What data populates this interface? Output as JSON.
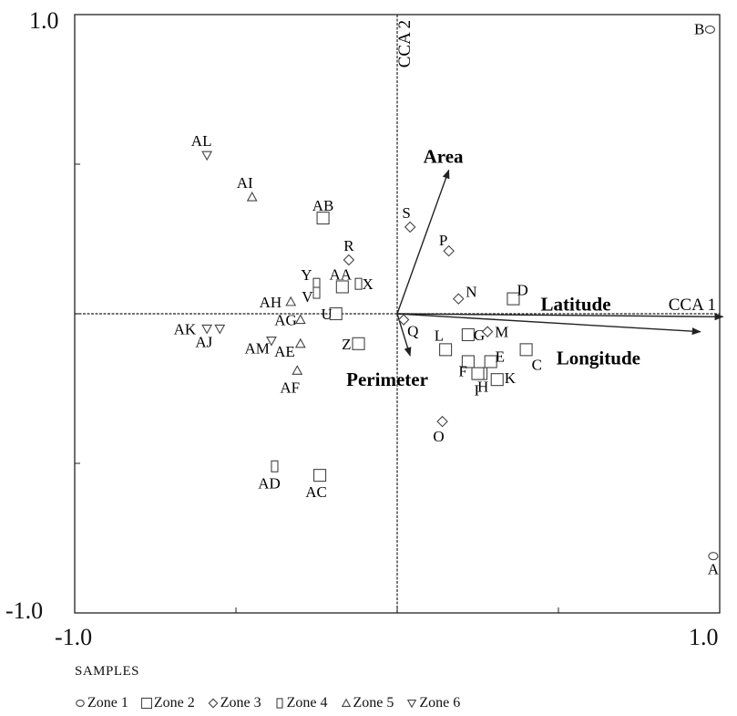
{
  "chart_data": {
    "type": "scatter",
    "title": "",
    "xlabel": "",
    "ylabel": "",
    "xlim": [
      -1.0,
      1.0
    ],
    "ylim": [
      -1.0,
      1.0
    ],
    "corner_labels": {
      "y_max": "1.0",
      "y_min": "-1.0",
      "x_min": "-1.0",
      "x_max": "1.0"
    },
    "axis_names": {
      "horizontal": "CCA 1",
      "vertical": "CCA 2"
    },
    "grid": false,
    "legend_title": "SAMPLES",
    "legend_position": "bottom",
    "legend": [
      {
        "zone": "zone1",
        "symbol": "circle",
        "label": "Zone 1"
      },
      {
        "zone": "zone2",
        "symbol": "square",
        "label": "Zone 2"
      },
      {
        "zone": "zone3",
        "symbol": "diamond",
        "label": "Zone 3"
      },
      {
        "zone": "zone4",
        "symbol": "rect",
        "label": "Zone 4"
      },
      {
        "zone": "zone5",
        "symbol": "triangle-up",
        "label": "Zone 5"
      },
      {
        "zone": "zone6",
        "symbol": "triangle-down",
        "label": "Zone 6"
      }
    ],
    "points": [
      {
        "label": "A",
        "zone": "zone1",
        "x": 0.98,
        "y": -0.81
      },
      {
        "label": "B",
        "zone": "zone1",
        "x": 0.97,
        "y": 0.95
      },
      {
        "label": "C",
        "zone": "zone2",
        "x": 0.4,
        "y": -0.12
      },
      {
        "label": "D",
        "zone": "zone2",
        "x": 0.36,
        "y": 0.05
      },
      {
        "label": "E",
        "zone": "zone2",
        "x": 0.29,
        "y": -0.16
      },
      {
        "label": "F",
        "zone": "zone2",
        "x": 0.22,
        "y": -0.16
      },
      {
        "label": "G",
        "zone": "zone2",
        "x": 0.22,
        "y": -0.07
      },
      {
        "label": "H",
        "zone": "zone2",
        "x": 0.26,
        "y": -0.2
      },
      {
        "label": "I",
        "zone": "zone2",
        "x": 0.25,
        "y": -0.2
      },
      {
        "label": "K",
        "zone": "zone2",
        "x": 0.31,
        "y": -0.22
      },
      {
        "label": "L",
        "zone": "zone2",
        "x": 0.15,
        "y": -0.12
      },
      {
        "label": "Z",
        "zone": "zone2",
        "x": -0.12,
        "y": -0.1
      },
      {
        "label": "AB",
        "zone": "zone2",
        "x": -0.23,
        "y": 0.32
      },
      {
        "label": "AC",
        "zone": "zone2",
        "x": -0.24,
        "y": -0.54
      },
      {
        "label": "AA",
        "zone": "zone2",
        "x": -0.17,
        "y": 0.09
      },
      {
        "label": "U",
        "zone": "zone2",
        "x": -0.19,
        "y": 0.0
      },
      {
        "label": "M",
        "zone": "zone3",
        "x": 0.28,
        "y": -0.06
      },
      {
        "label": "N",
        "zone": "zone3",
        "x": 0.19,
        "y": 0.05
      },
      {
        "label": "O",
        "zone": "zone3",
        "x": 0.14,
        "y": -0.36
      },
      {
        "label": "P",
        "zone": "zone3",
        "x": 0.16,
        "y": 0.21
      },
      {
        "label": "Q",
        "zone": "zone3",
        "x": 0.02,
        "y": -0.02
      },
      {
        "label": "R",
        "zone": "zone3",
        "x": -0.15,
        "y": 0.18
      },
      {
        "label": "S",
        "zone": "zone3",
        "x": 0.04,
        "y": 0.29
      },
      {
        "label": "X",
        "zone": "zone4",
        "x": -0.12,
        "y": 0.1
      },
      {
        "label": "Y",
        "zone": "zone4",
        "x": -0.25,
        "y": 0.1
      },
      {
        "label": "V",
        "zone": "zone4",
        "x": -0.25,
        "y": 0.07
      },
      {
        "label": "AD",
        "zone": "zone4",
        "x": -0.38,
        "y": -0.51
      },
      {
        "label": "AG",
        "zone": "zone5",
        "x": -0.3,
        "y": -0.02
      },
      {
        "label": "AE",
        "zone": "zone5",
        "x": -0.3,
        "y": -0.1
      },
      {
        "label": "AF",
        "zone": "zone5",
        "x": -0.31,
        "y": -0.19
      },
      {
        "label": "AH",
        "zone": "zone5",
        "x": -0.33,
        "y": 0.04
      },
      {
        "label": "AI",
        "zone": "zone5",
        "x": -0.45,
        "y": 0.39
      },
      {
        "label": "AJ",
        "zone": "zone6",
        "x": -0.55,
        "y": -0.05
      },
      {
        "label": "AK",
        "zone": "zone6",
        "x": -0.59,
        "y": -0.05
      },
      {
        "label": "AL",
        "zone": "zone6",
        "x": -0.59,
        "y": 0.53
      },
      {
        "label": "AM",
        "zone": "zone6",
        "x": -0.39,
        "y": -0.09
      }
    ],
    "vectors": [
      {
        "label": "Area",
        "x": 0.16,
        "y": 0.48
      },
      {
        "label": "Latitude",
        "x": 1.01,
        "y": -0.01
      },
      {
        "label": "Longitude",
        "x": 0.94,
        "y": -0.06
      },
      {
        "label": "Perimeter",
        "x": 0.04,
        "y": -0.14
      }
    ]
  }
}
